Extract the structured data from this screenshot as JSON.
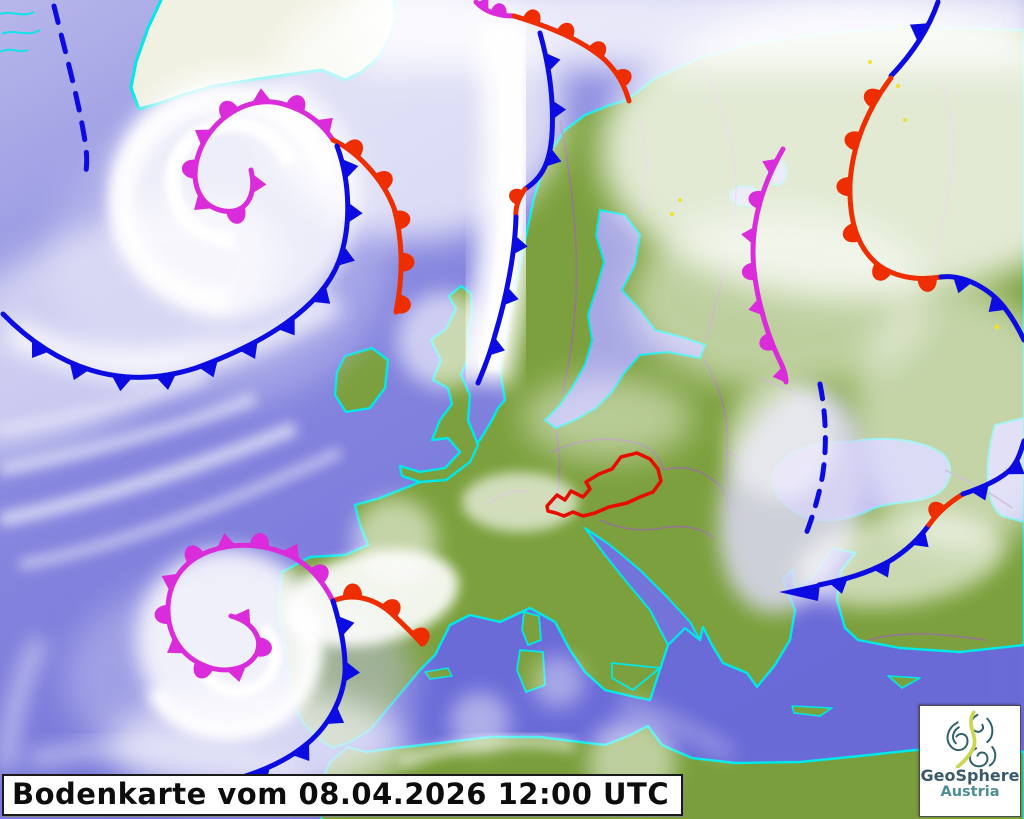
{
  "title_bar": {
    "text": "Bodenkarte vom 08.04.2026 12:00 UTC"
  },
  "logo": {
    "name": "GeoSphere",
    "country": "Austria"
  },
  "map": {
    "kind": "surface-pressure-frontal-analysis-over-satellite-image",
    "region": "Europe and North Atlantic",
    "valid_time": "08.04.2026 12:00 UTC",
    "highlighted_country": {
      "name": "Austria",
      "outline_color": "#e80c00"
    },
    "palette": {
      "cold_front": "#0b0be2",
      "warm_front": "#ee2e00",
      "occluded_front": "#da2cda",
      "trough": "#0b0be2",
      "coastline": "#00e8e8",
      "country_border": "#9a6fa0",
      "land": "#7ca03d",
      "sea": "#7c7cdc",
      "cloud": "#ffffff",
      "ice_land": "#f1f1e2"
    },
    "fronts": [
      {
        "type": "occluded",
        "area": "Greenland Sea cyclone spiral"
      },
      {
        "type": "warm",
        "area": "south of Iceland"
      },
      {
        "type": "cold",
        "area": "central North Atlantic"
      },
      {
        "type": "occluded",
        "area": "northern Scandinavia"
      },
      {
        "type": "warm",
        "area": "Finnmark / Barents coast"
      },
      {
        "type": "stationary",
        "area": "Norwegian coast into North Sea"
      },
      {
        "type": "cold",
        "area": "Barents Sea"
      },
      {
        "type": "warm",
        "area": "northwest Russia"
      },
      {
        "type": "cold",
        "area": "east of White Sea"
      },
      {
        "type": "occluded",
        "area": "western Russia"
      },
      {
        "type": "stationary",
        "area": "Anatolia toward Caucasus"
      },
      {
        "type": "occluded",
        "area": "cyclone spiral west of Iberia"
      },
      {
        "type": "warm",
        "area": "northern Spain"
      },
      {
        "type": "cold",
        "area": "along Portuguese coast"
      }
    ],
    "troughs": [
      {
        "type": "trough",
        "area": "Denmark Strait"
      },
      {
        "type": "trough",
        "area": "Ukraine / north of Black Sea"
      }
    ]
  }
}
